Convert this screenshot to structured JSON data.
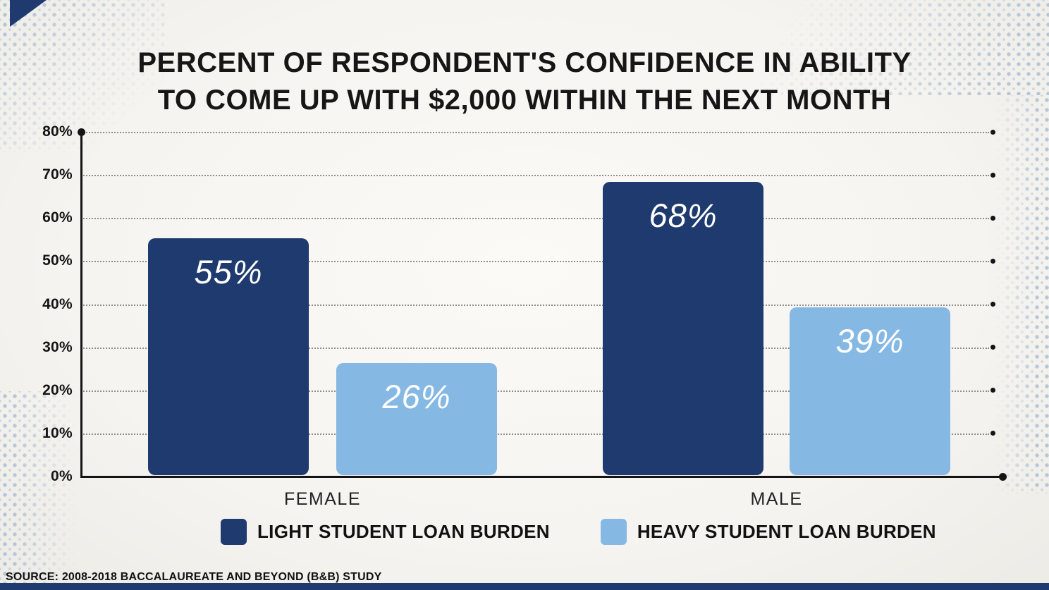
{
  "page": {
    "background_color": "#f7f5f1",
    "accent_navy": "#1e3a6e",
    "accent_light_blue": "#85b8e3",
    "dot_pattern_color": "#8ca4c7"
  },
  "chart_data": {
    "type": "bar",
    "title": "PERCENT OF RESPONDENT'S CONFIDENCE IN ABILITY TO COME UP WITH $2,000 WITHIN THE NEXT MONTH",
    "title_lines": [
      "PERCENT OF RESPONDENT'S CONFIDENCE IN ABILITY",
      "TO COME UP WITH $2,000 WITHIN THE NEXT MONTH"
    ],
    "categories": [
      "FEMALE",
      "MALE"
    ],
    "series": [
      {
        "name": "LIGHT STUDENT LOAN BURDEN",
        "color": "#1e3a6e",
        "values": [
          55,
          68
        ],
        "value_labels": [
          "55%",
          "68%"
        ]
      },
      {
        "name": "HEAVY STUDENT LOAN BURDEN",
        "color": "#85b8e3",
        "values": [
          26,
          39
        ],
        "value_labels": [
          "26%",
          "39%"
        ]
      }
    ],
    "ylim": [
      0,
      80
    ],
    "ytick_labels": [
      "80%",
      "70%",
      "60%",
      "50%",
      "40%",
      "30%",
      "20%",
      "10%",
      "0%"
    ],
    "grid": "dotted horizontal gridlines with end dots, legend bottom",
    "xlabel": "",
    "ylabel": "",
    "source": "SOURCE: 2008-2018 BACCALAUREATE AND BEYOND (B&B) STUDY"
  }
}
